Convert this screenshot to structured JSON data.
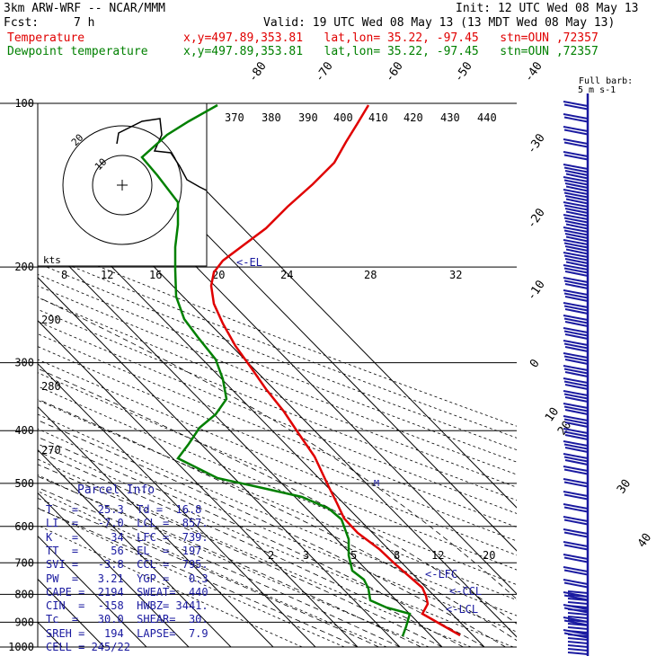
{
  "header": {
    "model": "3km ARW-WRF -- NCAR/MMM",
    "init": "Init: 12 UTC Wed 08 May 13",
    "fcst_label": "Fcst:",
    "fcst_value": "7 h",
    "valid": "Valid: 19 UTC Wed 08 May 13 (13 MDT Wed 08 May 13)",
    "temp_label": "Temperature",
    "temp_info": "x,y=497.89,353.81   lat,lon= 35.22, -97.45   stn=OUN ,72357",
    "dew_label": "Dewpoint temperature",
    "dew_info": "x,y=497.89,353.81   lat,lon= 35.22, -97.45   stn=OUN ,72357",
    "barb_label_1": "Full barb:",
    "barb_label_2": "5 m s-1"
  },
  "chart_data": {
    "type": "line",
    "ylabel_ticks": [
      "100",
      "200",
      "300",
      "400",
      "500",
      "600",
      "700",
      "800",
      "900",
      "1000"
    ],
    "isotherm_labels": [
      "-80",
      "-70",
      "-60",
      "-50",
      "-40",
      "-30",
      "-20",
      "-10",
      "0",
      "10",
      "20",
      "30",
      "40"
    ],
    "theta_labels": [
      "370",
      "380",
      "390",
      "400",
      "410",
      "420",
      "430",
      "440",
      "290",
      "280",
      "270"
    ],
    "hodograph_ring_labels": [
      "20",
      "10"
    ],
    "hodograph_kts_label": "kts",
    "wspeed_labels": [
      "8",
      "12",
      "16",
      "20",
      "24",
      "28",
      "32"
    ],
    "mixing_ratio_labels": [
      "2",
      "3",
      "5",
      "8",
      "12",
      "20"
    ],
    "markers": [
      "<-EL",
      "<-LFC",
      "<-CCL",
      "<-LCL"
    ],
    "series": [
      {
        "name": "Temperature",
        "color": "#e00000",
        "points": [
          [
            100,
            -57
          ],
          [
            150,
            -53
          ],
          [
            200,
            -52
          ],
          [
            250,
            -38
          ],
          [
            300,
            -25
          ],
          [
            350,
            -15
          ],
          [
            400,
            -8
          ],
          [
            450,
            -2
          ],
          [
            500,
            3
          ],
          [
            550,
            7
          ],
          [
            600,
            10
          ],
          [
            650,
            14
          ],
          [
            700,
            17
          ],
          [
            750,
            20
          ],
          [
            800,
            24
          ],
          [
            850,
            25
          ],
          [
            900,
            24
          ],
          [
            950,
            25.3
          ]
        ]
      },
      {
        "name": "Dewpoint temperature",
        "color": "#008000",
        "points": [
          [
            100,
            -70
          ],
          [
            130,
            -77
          ],
          [
            150,
            -78
          ],
          [
            180,
            -76
          ],
          [
            200,
            -75
          ],
          [
            250,
            -69
          ],
          [
            300,
            -60
          ],
          [
            350,
            -49
          ],
          [
            400,
            -46
          ],
          [
            450,
            -42
          ],
          [
            500,
            -30
          ],
          [
            550,
            -6
          ],
          [
            600,
            -1
          ],
          [
            650,
            1
          ],
          [
            700,
            5
          ],
          [
            750,
            11
          ],
          [
            800,
            13
          ],
          [
            850,
            16.8
          ],
          [
            900,
            16.8
          ],
          [
            950,
            16
          ]
        ]
      }
    ]
  },
  "parcel_info": {
    "title": "Parcel Info",
    "rows": [
      "T   =   25.3  Td =  16.8",
      "LI  =   -7.0  LCL =  857.",
      "K   =     34  LFC =  739.",
      "TT  =     56  EL  =  197",
      "SVI =   -3.8  CCL =  795.",
      "PW  =   3.21  YGP =   0.3",
      "CAPE =  2194  SWEAT=  440",
      "CIN  =  -158  HWBZ= 3441.",
      "Tc  =   30.0  SHEAR=  30.",
      "SREH =   194  LAPSE=  7.9",
      "CELL = 245/22"
    ]
  }
}
